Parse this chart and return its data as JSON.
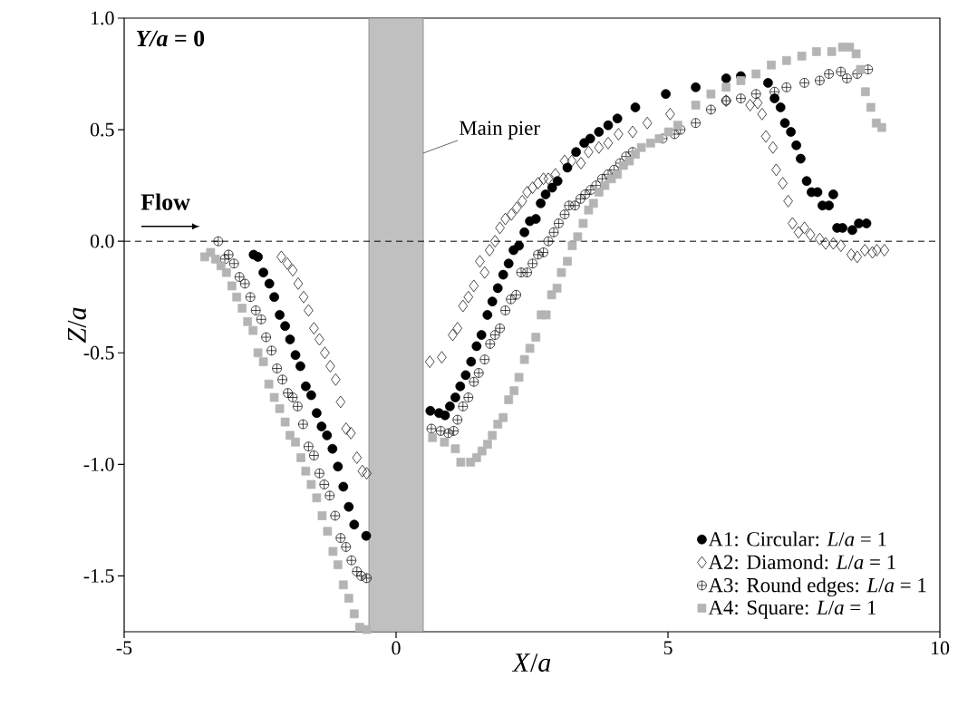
{
  "chart_data": {
    "type": "scatter",
    "xlabel": "*X*/*a*",
    "ylabel": "*Z*/*a*",
    "xlim": [
      -5,
      10
    ],
    "ylim": [
      -1.75,
      1
    ],
    "xticks": [
      -5,
      0,
      5,
      10
    ],
    "yticks": [
      {
        "value": -1.5,
        "label": "-1.5"
      },
      {
        "value": -1,
        "label": "-1.0"
      },
      {
        "value": -0.5,
        "label": "-0.5"
      },
      {
        "value": 0,
        "label": "0.0"
      },
      {
        "value": 0.5,
        "label": "0.5"
      },
      {
        "value": 1,
        "label": "1.0"
      }
    ],
    "grid": false,
    "legend": "bottom right",
    "line_style": "none",
    "annotations": [
      "*Y/a* = 0",
      "Flow"
    ],
    "ref_lines": [
      {
        "axis": "y",
        "value": 0,
        "line_style": "dashed",
        "color": "#000000"
      }
    ],
    "bands": [
      {
        "axis": "x",
        "from": -0.5,
        "to": 0.5,
        "label": "Main pier",
        "color": "#c0c0c0"
      }
    ],
    "series": [
      {
        "name": "A1: Circular: *L*/*a* = 1",
        "color": "#000000",
        "marker": "circle",
        "x": [
          -2.62,
          -2.54,
          -2.44,
          -2.33,
          -2.24,
          -2.14,
          -2.04,
          -1.95,
          -1.85,
          -1.76,
          -1.66,
          -1.56,
          -1.46,
          -1.37,
          -1.27,
          -1.17,
          -1.07,
          -0.97,
          -0.87,
          -0.77,
          -0.55,
          0.63,
          0.79,
          0.9,
          0.99,
          1.09,
          1.18,
          1.28,
          1.38,
          1.48,
          1.57,
          1.68,
          1.77,
          1.87,
          1.97,
          2.07,
          2.16,
          2.26,
          2.36,
          2.46,
          2.57,
          2.66,
          2.75,
          2.87,
          2.97,
          3.15,
          3.31,
          3.46,
          3.57,
          3.73,
          3.9,
          4.07,
          4.4,
          4.96,
          5.51,
          6.07,
          6.34,
          6.84,
          6.96,
          7.07,
          7.15,
          7.26,
          7.36,
          7.44,
          7.55,
          7.64,
          7.75,
          7.84,
          7.96,
          8.04,
          8.11,
          8.21,
          8.39,
          8.51,
          8.65
        ],
        "values": [
          -0.06,
          -0.07,
          -0.14,
          -0.19,
          -0.25,
          -0.33,
          -0.38,
          -0.44,
          -0.51,
          -0.56,
          -0.65,
          -0.69,
          -0.77,
          -0.83,
          -0.87,
          -0.93,
          -1.01,
          -1.1,
          -1.19,
          -1.27,
          -1.32,
          -0.76,
          -0.77,
          -0.78,
          -0.74,
          -0.7,
          -0.65,
          -0.6,
          -0.54,
          -0.47,
          -0.42,
          -0.33,
          -0.27,
          -0.21,
          -0.15,
          -0.1,
          -0.04,
          -0.02,
          0.04,
          0.09,
          0.1,
          0.17,
          0.21,
          0.24,
          0.27,
          0.33,
          0.4,
          0.44,
          0.46,
          0.49,
          0.52,
          0.55,
          0.6,
          0.66,
          0.69,
          0.73,
          0.74,
          0.71,
          0.64,
          0.6,
          0.53,
          0.49,
          0.43,
          0.37,
          0.27,
          0.22,
          0.22,
          0.16,
          0.16,
          0.21,
          0.06,
          0.06,
          0.05,
          0.08,
          0.08
        ]
      },
      {
        "name": "A2: Diamond: *L*/*a* = 1",
        "color": "#000000",
        "marker": "diamond",
        "x": [
          -2.11,
          -2.0,
          -1.9,
          -1.8,
          -1.7,
          -1.61,
          -1.51,
          -1.41,
          -1.31,
          -1.21,
          -1.11,
          -1.02,
          -0.92,
          -0.83,
          -0.72,
          -0.62,
          -0.54,
          0.62,
          0.84,
          1.04,
          1.13,
          1.23,
          1.33,
          1.43,
          1.54,
          1.63,
          1.72,
          1.82,
          1.91,
          2.01,
          2.12,
          2.22,
          2.32,
          2.41,
          2.51,
          2.61,
          2.71,
          2.8,
          2.93,
          3.1,
          3.23,
          3.4,
          3.54,
          3.73,
          3.9,
          4.09,
          4.35,
          4.62,
          5.04,
          5.51,
          6.07,
          6.51,
          6.65,
          6.73,
          6.8,
          6.93,
          6.99,
          7.11,
          7.21,
          7.29,
          7.4,
          7.51,
          7.62,
          7.79,
          7.9,
          8.04,
          8.18,
          8.37,
          8.48,
          8.62,
          8.76,
          8.84,
          8.98
        ],
        "values": [
          -0.07,
          -0.1,
          -0.13,
          -0.19,
          -0.25,
          -0.31,
          -0.39,
          -0.44,
          -0.5,
          -0.56,
          -0.62,
          -0.72,
          -0.84,
          -0.86,
          -0.97,
          -1.03,
          -1.04,
          -0.54,
          -0.52,
          -0.42,
          -0.39,
          -0.29,
          -0.25,
          -0.2,
          -0.09,
          -0.14,
          -0.04,
          0.0,
          0.06,
          0.1,
          0.12,
          0.15,
          0.18,
          0.22,
          0.24,
          0.26,
          0.28,
          0.28,
          0.3,
          0.36,
          0.36,
          0.35,
          0.4,
          0.42,
          0.44,
          0.48,
          0.49,
          0.53,
          0.57,
          null,
          0.63,
          0.61,
          0.62,
          0.57,
          0.47,
          0.42,
          0.32,
          0.26,
          0.18,
          0.08,
          0.04,
          0.06,
          0.03,
          0.01,
          -0.01,
          -0.01,
          -0.02,
          -0.06,
          -0.07,
          -0.04,
          -0.05,
          -0.04,
          -0.04
        ]
      },
      {
        "name": "A3: Round edges: *L*/*a* = 1",
        "color": "#000000",
        "marker": "cross",
        "x": [
          -3.27,
          -3.15,
          -3.08,
          -2.98,
          -2.88,
          -2.78,
          -2.68,
          -2.58,
          -2.48,
          -2.39,
          -2.29,
          -2.19,
          -2.09,
          -1.99,
          -1.9,
          -1.81,
          -1.71,
          -1.61,
          -1.51,
          -1.41,
          -1.32,
          -1.22,
          -1.12,
          -1.02,
          -0.92,
          -0.82,
          -0.72,
          -0.64,
          -0.54,
          0.65,
          0.82,
          0.96,
          1.06,
          1.13,
          1.23,
          1.33,
          1.43,
          1.52,
          1.63,
          1.73,
          1.82,
          1.91,
          2.01,
          2.11,
          2.21,
          2.3,
          2.41,
          2.51,
          2.61,
          2.71,
          2.8,
          2.9,
          2.99,
          3.1,
          3.18,
          3.29,
          3.39,
          3.48,
          3.58,
          3.68,
          3.79,
          3.9,
          4.01,
          4.12,
          4.23,
          4.35,
          4.51,
          4.73,
          4.9,
          5.12,
          5.23,
          5.51,
          5.79,
          6.07,
          6.34,
          6.62,
          6.96,
          7.18,
          7.51,
          7.79,
          7.96,
          8.18,
          8.29,
          8.48,
          8.68
        ],
        "values": [
          0.0,
          -0.08,
          -0.06,
          -0.1,
          -0.16,
          -0.19,
          -0.25,
          -0.31,
          -0.35,
          -0.43,
          -0.49,
          -0.57,
          -0.62,
          -0.68,
          -0.7,
          -0.74,
          -0.82,
          -0.92,
          -0.96,
          -1.04,
          -1.09,
          -1.14,
          -1.23,
          -1.33,
          -1.37,
          -1.43,
          -1.48,
          -1.5,
          -1.51,
          -0.84,
          -0.85,
          -0.86,
          -0.85,
          -0.8,
          -0.74,
          -0.7,
          -0.63,
          -0.59,
          -0.53,
          -0.46,
          -0.42,
          -0.39,
          -0.31,
          -0.26,
          -0.24,
          -0.14,
          -0.14,
          -0.1,
          -0.06,
          -0.05,
          0.0,
          0.04,
          0.08,
          0.12,
          0.16,
          0.16,
          0.19,
          0.21,
          0.23,
          0.25,
          0.28,
          0.3,
          0.32,
          0.35,
          0.38,
          0.4,
          null,
          null,
          0.46,
          0.48,
          0.5,
          0.53,
          0.59,
          0.63,
          0.64,
          0.66,
          0.67,
          0.69,
          0.71,
          0.72,
          0.75,
          0.76,
          0.73,
          0.75,
          0.77
        ]
      },
      {
        "name": "A4: Square: *L*/*a* = 1",
        "color": "#b4b4b4",
        "marker": "square",
        "x": [
          -3.52,
          -3.41,
          -3.32,
          -3.22,
          -3.12,
          -3.02,
          -2.93,
          -2.83,
          -2.73,
          -2.63,
          -2.54,
          -2.44,
          -2.34,
          -2.24,
          -2.14,
          -2.04,
          -1.95,
          -1.85,
          -1.75,
          -1.66,
          -1.56,
          -1.46,
          -1.36,
          -1.26,
          -1.16,
          -1.07,
          -0.97,
          -0.87,
          -0.77,
          -0.67,
          -0.54,
          0.67,
          0.89,
          1.09,
          1.19,
          1.37,
          1.48,
          1.58,
          1.68,
          1.77,
          1.87,
          1.97,
          2.07,
          2.17,
          2.26,
          2.36,
          2.46,
          2.57,
          2.67,
          2.76,
          2.86,
          2.96,
          3.04,
          3.15,
          3.24,
          3.34,
          3.44,
          3.54,
          3.63,
          3.73,
          3.84,
          3.96,
          4.07,
          4.18,
          4.29,
          4.4,
          4.51,
          4.68,
          4.84,
          5.01,
          5.18,
          5.51,
          5.79,
          6.07,
          6.34,
          6.62,
          6.9,
          7.18,
          7.46,
          7.73,
          8.01,
          8.21,
          8.34,
          8.46,
          8.54,
          8.63,
          8.73,
          8.83,
          8.93
        ],
        "values": [
          -0.07,
          -0.05,
          -0.08,
          -0.11,
          -0.14,
          -0.2,
          -0.25,
          -0.3,
          -0.36,
          -0.4,
          -0.5,
          -0.54,
          -0.64,
          -0.7,
          -0.75,
          -0.81,
          -0.87,
          -0.9,
          -0.97,
          -1.03,
          -1.09,
          -1.15,
          -1.23,
          -1.3,
          -1.39,
          -1.45,
          -1.54,
          -1.6,
          -1.67,
          -1.73,
          -1.74,
          -0.88,
          -0.9,
          -0.93,
          -0.99,
          -0.99,
          -0.97,
          -0.94,
          -0.91,
          -0.87,
          -0.82,
          -0.79,
          -0.71,
          -0.67,
          -0.61,
          -0.53,
          -0.48,
          -0.43,
          -0.33,
          -0.33,
          -0.24,
          -0.21,
          -0.14,
          -0.09,
          -0.02,
          0.02,
          0.08,
          0.14,
          0.17,
          0.22,
          0.25,
          0.28,
          0.3,
          0.34,
          0.36,
          0.39,
          0.42,
          0.44,
          0.46,
          0.49,
          0.52,
          0.61,
          0.66,
          0.69,
          0.72,
          0.75,
          0.79,
          0.81,
          0.83,
          0.85,
          0.85,
          0.87,
          0.87,
          0.84,
          0.77,
          0.67,
          0.6,
          0.53,
          0.51
        ]
      }
    ]
  }
}
